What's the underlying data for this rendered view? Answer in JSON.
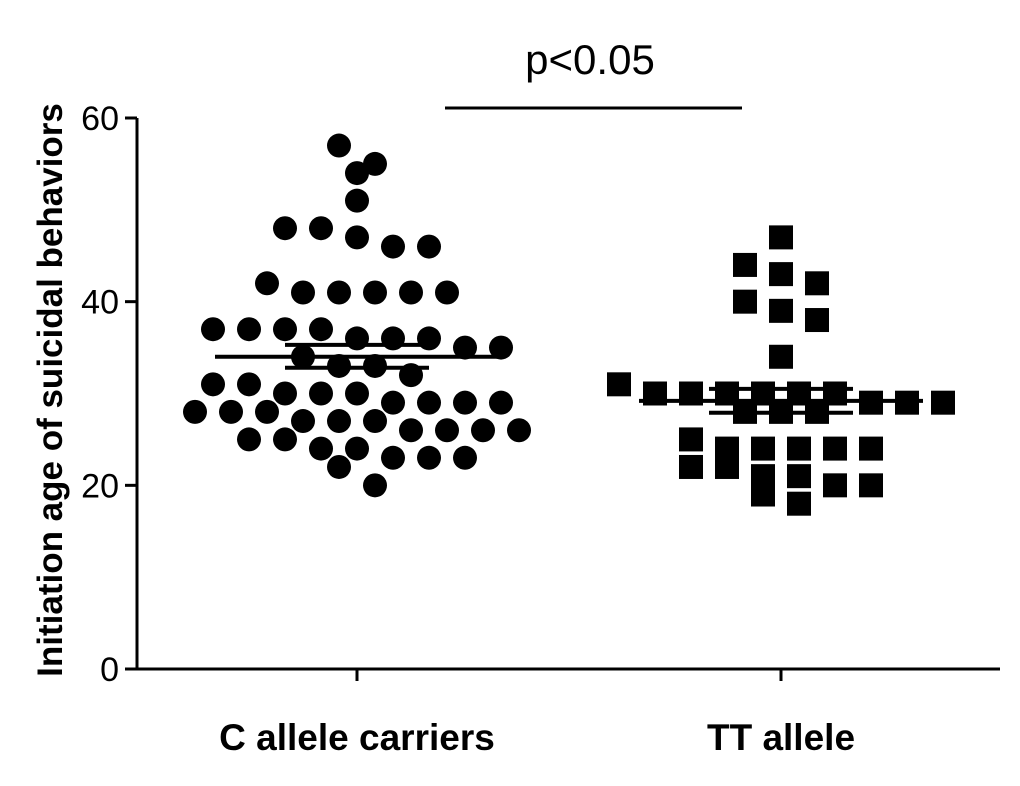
{
  "chart_data": {
    "type": "scatter",
    "title": "",
    "xlabel": "",
    "ylabel": "Initiation age of suicidal behaviors",
    "ylim": [
      0,
      60
    ],
    "yticks": [
      0,
      20,
      40,
      60
    ],
    "categories": [
      "C allele carriers",
      "TT allele"
    ],
    "grid": false,
    "legend": "none",
    "annotation": "p<0.05",
    "colors": {
      "marker": "#000000",
      "axis": "#000000"
    },
    "series": [
      {
        "category": "C allele carriers",
        "marker": "circle",
        "mean": 34,
        "sem": [
          32.8,
          35.3
        ],
        "values": [
          57,
          55,
          54,
          51,
          48,
          48,
          47,
          46,
          46,
          42,
          41,
          41,
          41,
          41,
          41,
          37,
          37,
          37,
          37,
          36,
          36,
          36,
          35,
          35,
          34,
          33,
          33,
          32,
          31,
          31,
          30,
          30,
          30,
          29,
          29,
          29,
          29,
          28,
          28,
          28,
          27,
          27,
          27,
          26,
          26,
          26,
          26,
          25,
          25,
          24,
          24,
          23,
          23,
          23,
          22,
          20
        ]
      },
      {
        "category": "TT allele",
        "marker": "square",
        "mean": 29.2,
        "sem": [
          27.9,
          30.5
        ],
        "values": [
          47,
          44,
          43,
          42,
          40,
          39,
          38,
          34,
          31,
          30,
          30,
          30,
          30,
          30,
          30,
          29,
          29,
          29,
          28,
          28,
          28,
          25,
          24,
          24,
          24,
          24,
          24,
          22,
          22,
          21,
          21,
          20,
          20,
          19,
          18
        ]
      }
    ]
  }
}
